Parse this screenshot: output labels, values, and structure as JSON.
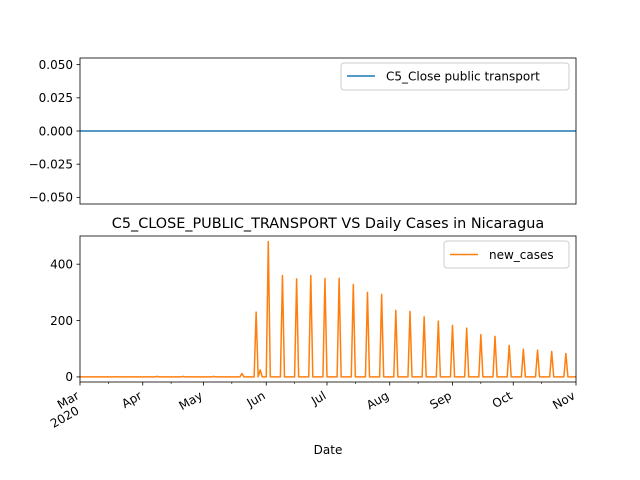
{
  "chart_data": [
    {
      "type": "line",
      "title": "",
      "xlabel": "",
      "ylabel": "",
      "ylim": [
        -0.055,
        0.055
      ],
      "yticks": [
        -0.05,
        -0.025,
        0.0,
        0.025,
        0.05
      ],
      "ytick_labels": [
        "−0.050",
        "−0.025",
        "0.000",
        "0.025",
        "0.050"
      ],
      "legend_position": "top-right",
      "series": [
        {
          "name": "C5_Close public transport",
          "color": "#1f77b4",
          "x": [
            "2020-03-01",
            "2020-11-01"
          ],
          "values": [
            0,
            0
          ]
        }
      ]
    },
    {
      "type": "line",
      "title": "C5_CLOSE_PUBLIC_TRANSPORT VS Daily Cases in Nicaragua",
      "xlabel": "Date",
      "ylabel": "",
      "ylim": [
        -18,
        500
      ],
      "yticks": [
        0,
        200,
        400
      ],
      "ytick_labels": [
        "0",
        "200",
        "400"
      ],
      "xlim": [
        "2020-03-01",
        "2020-11-01"
      ],
      "xtick_labels": [
        {
          "date": "2020-03-01",
          "label": "Mar",
          "sublabel": "2020"
        },
        {
          "date": "2020-04-01",
          "label": "Apr"
        },
        {
          "date": "2020-05-01",
          "label": "May"
        },
        {
          "date": "2020-06-01",
          "label": "Jun"
        },
        {
          "date": "2020-07-01",
          "label": "Jul"
        },
        {
          "date": "2020-08-01",
          "label": "Aug"
        },
        {
          "date": "2020-09-01",
          "label": "Sep"
        },
        {
          "date": "2020-10-01",
          "label": "Oct"
        },
        {
          "date": "2020-11-01",
          "label": "Nov"
        }
      ],
      "legend_position": "top-right",
      "series": [
        {
          "name": "new_cases",
          "color": "#ff7f0e",
          "baseline": 0,
          "spikes": [
            {
              "date": "2020-03-19",
              "value": 1
            },
            {
              "date": "2020-04-08",
              "value": 2
            },
            {
              "date": "2020-04-21",
              "value": 2
            },
            {
              "date": "2020-05-06",
              "value": 2
            },
            {
              "date": "2020-05-20",
              "value": 12
            },
            {
              "date": "2020-05-27",
              "value": 230
            },
            {
              "date": "2020-05-29",
              "value": 25
            },
            {
              "date": "2020-06-02",
              "value": 480
            },
            {
              "date": "2020-06-09",
              "value": 360
            },
            {
              "date": "2020-06-16",
              "value": 348
            },
            {
              "date": "2020-06-23",
              "value": 360
            },
            {
              "date": "2020-06-30",
              "value": 349
            },
            {
              "date": "2020-07-07",
              "value": 350
            },
            {
              "date": "2020-07-14",
              "value": 328
            },
            {
              "date": "2020-07-21",
              "value": 300
            },
            {
              "date": "2020-07-28",
              "value": 293
            },
            {
              "date": "2020-08-04",
              "value": 236
            },
            {
              "date": "2020-08-11",
              "value": 232
            },
            {
              "date": "2020-08-18",
              "value": 213
            },
            {
              "date": "2020-08-25",
              "value": 198
            },
            {
              "date": "2020-09-01",
              "value": 183
            },
            {
              "date": "2020-09-08",
              "value": 173
            },
            {
              "date": "2020-09-15",
              "value": 150
            },
            {
              "date": "2020-09-22",
              "value": 144
            },
            {
              "date": "2020-09-29",
              "value": 112
            },
            {
              "date": "2020-10-06",
              "value": 98
            },
            {
              "date": "2020-10-13",
              "value": 95
            },
            {
              "date": "2020-10-20",
              "value": 90
            },
            {
              "date": "2020-10-27",
              "value": 83
            },
            {
              "date": "2020-11-03",
              "value": 81
            }
          ]
        }
      ]
    }
  ]
}
